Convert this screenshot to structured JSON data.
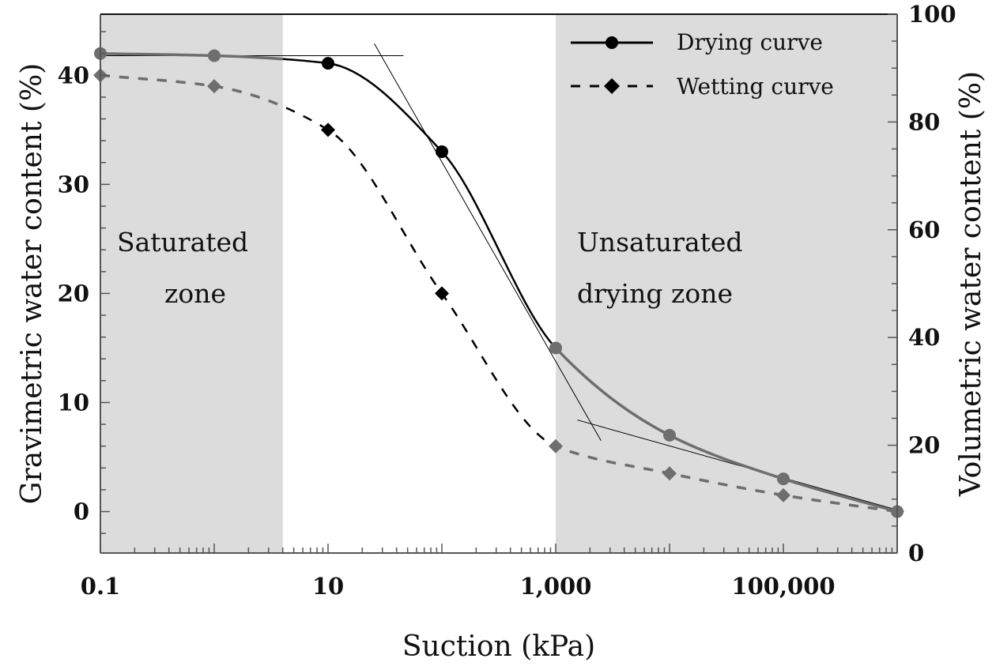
{
  "chart_data": {
    "type": "line",
    "xlabel": "Suction (kPa)",
    "ylabel": "Gravimetric water content (%)",
    "y2label": "Volumetric water content (%)",
    "xscale": "log",
    "xlim": [
      0.1,
      1000000
    ],
    "ylim": [
      -3.8,
      45.6
    ],
    "y2lim": [
      0,
      100
    ],
    "xticks": [
      {
        "v": 0.1,
        "label": "0.1"
      },
      {
        "v": 10,
        "label": "10"
      },
      {
        "v": 1000,
        "label": "1,000"
      },
      {
        "v": 100000,
        "label": "100,000"
      }
    ],
    "yticks": [
      {
        "v": 0,
        "label": "0"
      },
      {
        "v": 10,
        "label": "10"
      },
      {
        "v": 20,
        "label": "20"
      },
      {
        "v": 30,
        "label": "30"
      },
      {
        "v": 40,
        "label": "40"
      }
    ],
    "y2ticks": [
      {
        "v": 0,
        "label": "0"
      },
      {
        "v": 20,
        "label": "20"
      },
      {
        "v": 40,
        "label": "40"
      },
      {
        "v": 60,
        "label": "60"
      },
      {
        "v": 80,
        "label": "80"
      },
      {
        "v": 100,
        "label": "100"
      }
    ],
    "series": [
      {
        "name": "Drying curve",
        "style": "solid",
        "marker": "circle",
        "x": [
          0.1,
          1,
          10,
          100,
          1000,
          10000,
          100000,
          1000000
        ],
        "y": [
          42,
          41.8,
          41.1,
          33,
          15,
          7,
          3,
          0
        ]
      },
      {
        "name": "Wetting curve",
        "style": "dashed",
        "marker": "diamond",
        "x": [
          0.1,
          1,
          10,
          100,
          1000,
          10000,
          100000,
          1000000
        ],
        "y": [
          40,
          39,
          35,
          20,
          6,
          3.5,
          1.5,
          0
        ]
      }
    ],
    "shaded_regions": [
      {
        "x": [
          0.1,
          4
        ],
        "label_line1": "Saturated",
        "label_line2": "zone"
      },
      {
        "x": [
          1000,
          1000000
        ],
        "label_line1": "Unsaturated",
        "label_line2": "drying zone"
      }
    ],
    "tangent_lines": [
      {
        "x": [
          0.1,
          46
        ],
        "y": [
          41.8,
          41.8
        ]
      },
      {
        "x": [
          25.5,
          2500
        ],
        "y": [
          42.9,
          6.5
        ]
      },
      {
        "x": [
          1550,
          1000000
        ],
        "y": [
          8.4,
          0.15
        ]
      }
    ],
    "legend": {
      "position": "top-right",
      "entries": [
        "Drying curve",
        "Wetting curve"
      ]
    },
    "colors": {
      "shade": "#dcdcdc",
      "dark": "#000000",
      "gray": "#6e6e6e"
    }
  }
}
